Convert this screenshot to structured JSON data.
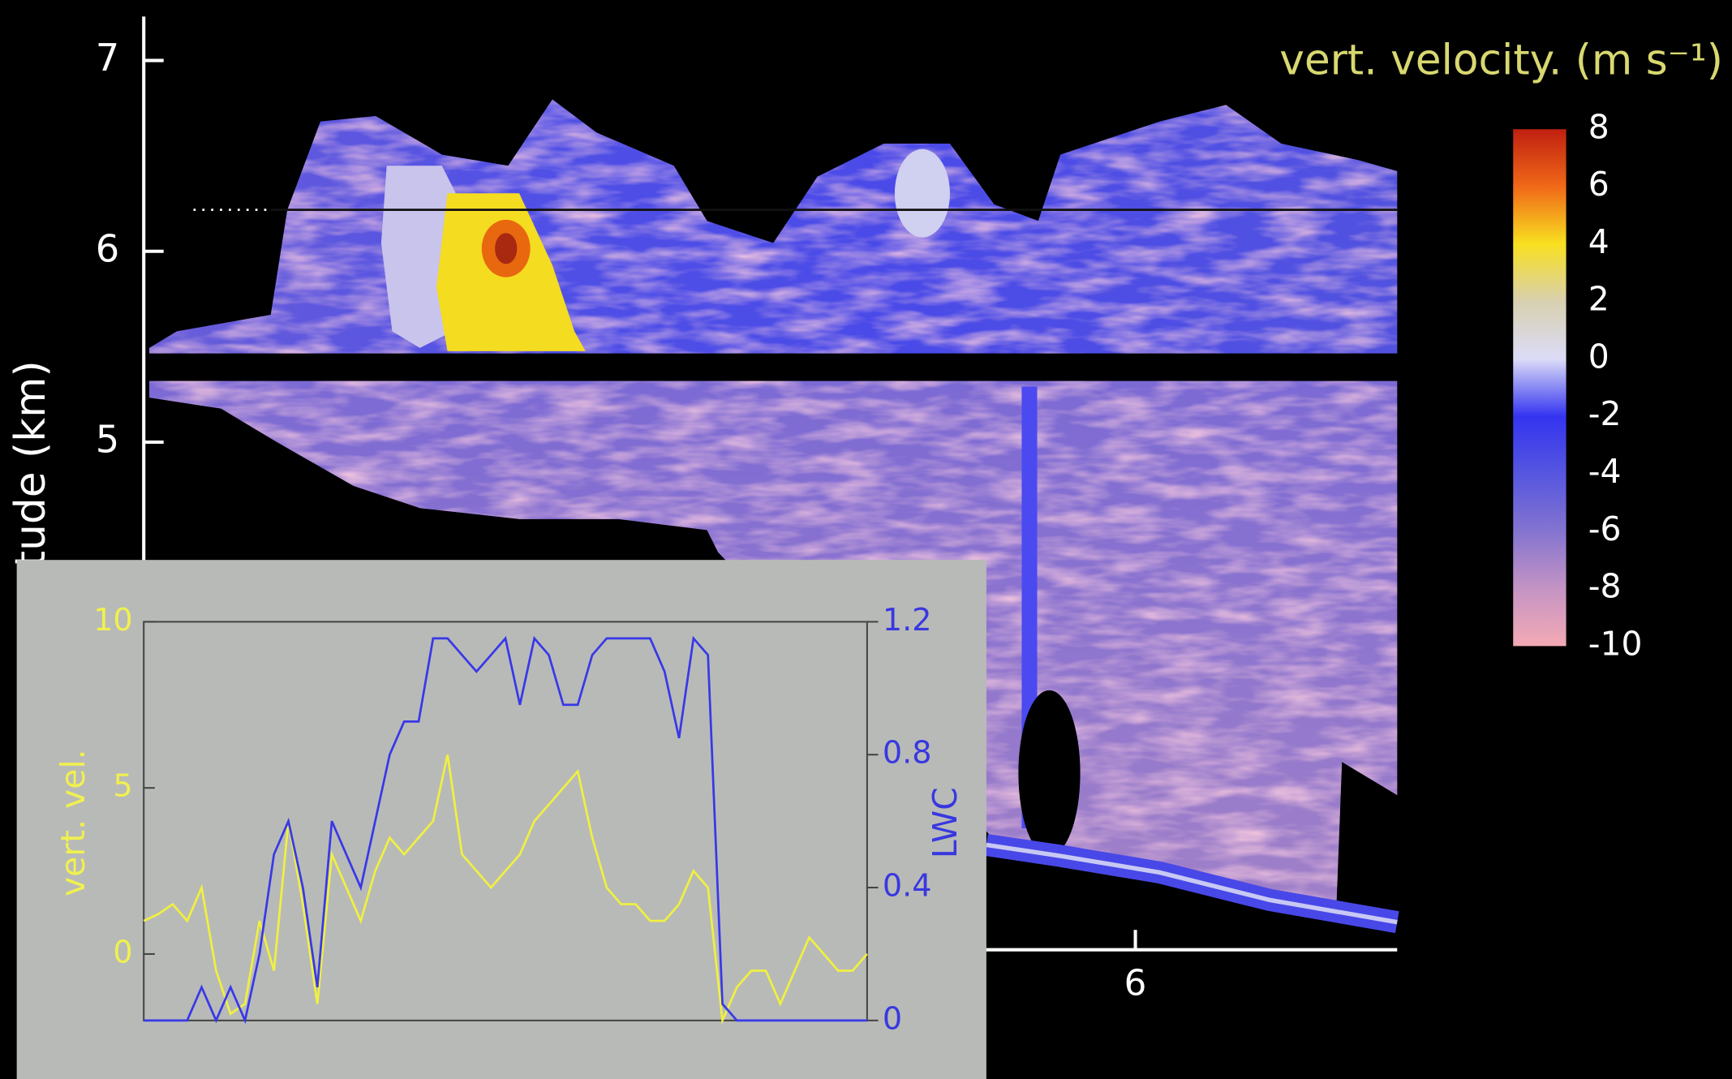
{
  "chart_data": [
    {
      "type": "heatmap",
      "title": "vert. velocity. (m s⁻¹)",
      "y_label": "tude (km)",
      "ylim": [
        2.34,
        7.23
      ],
      "yticks": [
        5,
        6,
        7
      ],
      "xlim": [
        2.97,
        6.8
      ],
      "xticks": [
        6
      ],
      "colorbar": {
        "lim": [
          -10,
          8
        ],
        "ticks": [
          8,
          6,
          4,
          2,
          0,
          -2,
          -4,
          -6,
          -8,
          -10
        ],
        "colors": [
          "#c02010",
          "#f06818",
          "#f8e020",
          "#d8d0b0",
          "#dcdcf8",
          "#3434f0",
          "#5656e0",
          "#8474d0",
          "#c494c4",
          "#f4aab4"
        ]
      }
    },
    {
      "type": "line",
      "y_label": "vert. vel.",
      "y2_label": "LWC",
      "ylim": [
        -2,
        10
      ],
      "yticks": [
        0,
        5,
        10
      ],
      "y2lim": [
        0,
        1.2
      ],
      "y2ticks": [
        0,
        0.4,
        0.8,
        1.2
      ],
      "series": [
        {
          "name": "vert. vel.",
          "color": "#f0f040",
          "values": [
            1,
            1.2,
            1.5,
            1,
            2,
            -0.5,
            -1.8,
            -1.5,
            1,
            -0.5,
            4,
            1.5,
            -1.5,
            3,
            2,
            1,
            2.5,
            3.5,
            3,
            3.5,
            4,
            6,
            3,
            2.5,
            2,
            2.5,
            3,
            4,
            4.5,
            5,
            5.5,
            3.5,
            2,
            1.5,
            1.5,
            1,
            1,
            1.5,
            2.5,
            2,
            -2,
            -1,
            -0.5,
            -0.5,
            -1.5,
            -0.5,
            0.5,
            0,
            -0.5,
            -0.5,
            0
          ]
        },
        {
          "name": "LWC",
          "color": "#3838e8",
          "axis": "y2",
          "values": [
            0,
            0,
            0,
            0,
            0.1,
            0,
            0.1,
            0,
            0.2,
            0.5,
            0.6,
            0.4,
            0.1,
            0.6,
            0.5,
            0.4,
            0.6,
            0.8,
            0.9,
            0.9,
            1.15,
            1.15,
            1.1,
            1.05,
            1.1,
            1.15,
            0.95,
            1.15,
            1.1,
            0.95,
            0.95,
            1.1,
            1.15,
            1.15,
            1.15,
            1.15,
            1.05,
            0.85,
            1.15,
            1.1,
            0.05,
            0,
            0,
            0,
            0,
            0,
            0,
            0,
            0,
            0,
            0
          ]
        }
      ]
    }
  ]
}
